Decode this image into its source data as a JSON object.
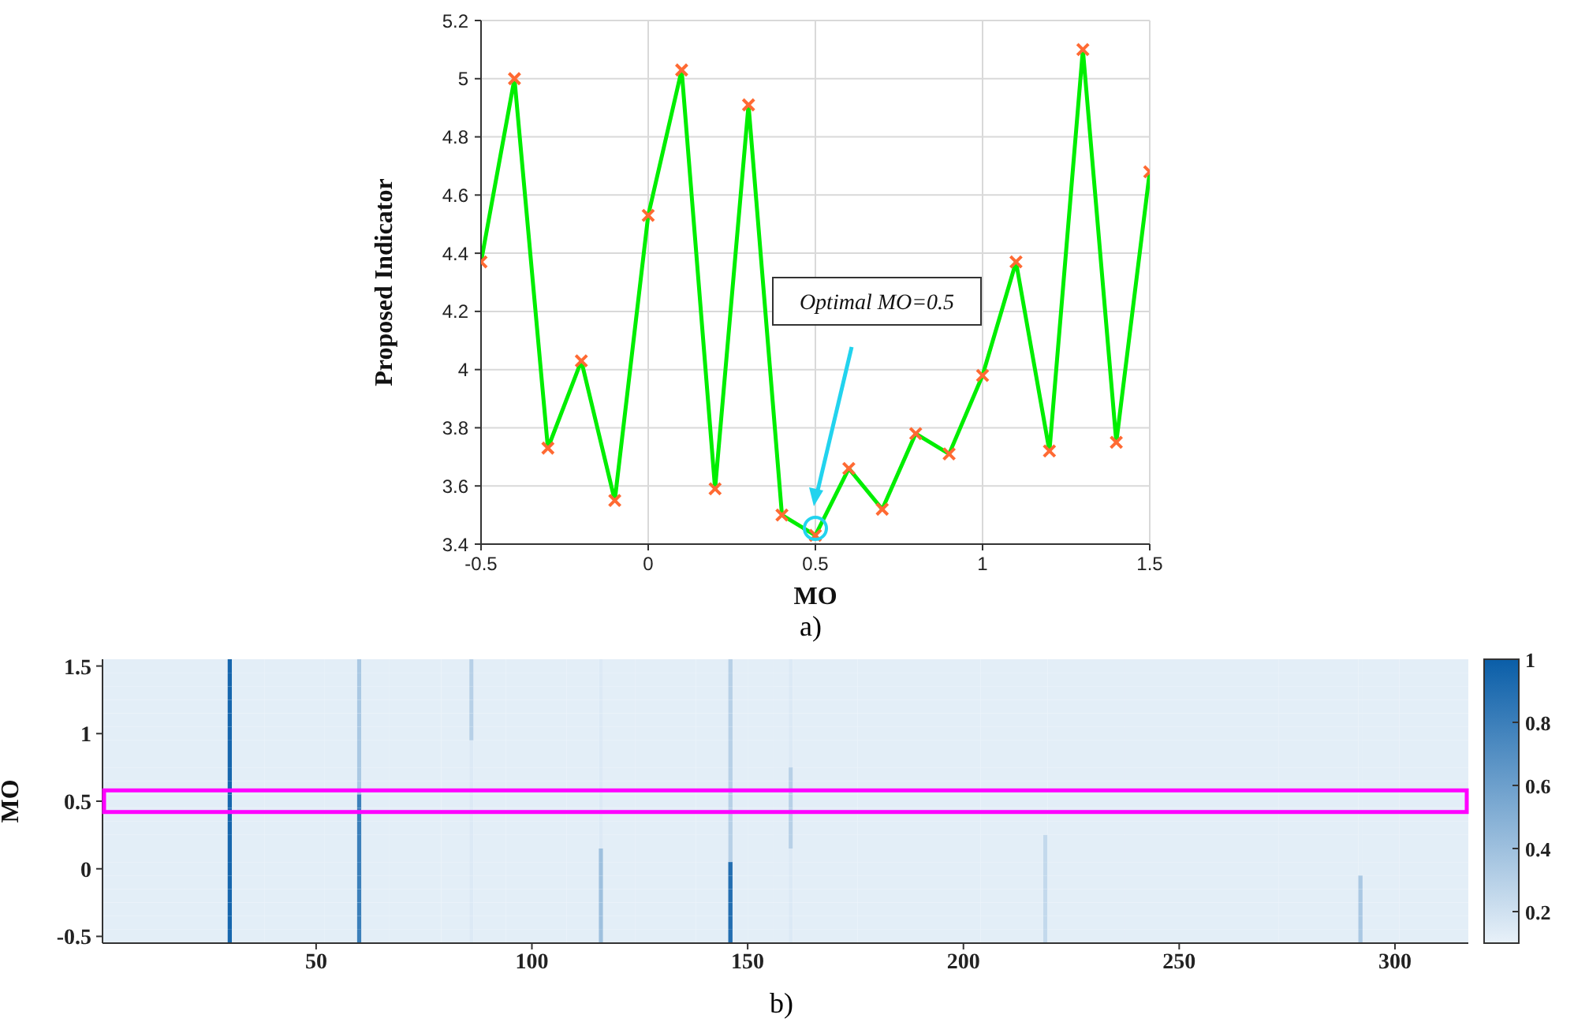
{
  "chart_data": [
    {
      "type": "line",
      "xlabel": "MO",
      "ylabel": "Proposed Indicator",
      "x": [
        -0.5,
        -0.4,
        -0.3,
        -0.2,
        -0.1,
        0,
        0.1,
        0.2,
        0.3,
        0.4,
        0.5,
        0.6,
        0.7,
        0.8,
        0.9,
        1.0,
        1.1,
        1.2,
        1.3,
        1.4,
        1.5
      ],
      "series": [
        {
          "color": "#00ee00",
          "colors": [
            "#ff6a33",
            "#ff6a33",
            "#ff6a33",
            "#ff6a33",
            "#ff6a33",
            "#ff6a33",
            "#ff6a33",
            "#ff6a33",
            "#ff6a33",
            "#ff6a33",
            "#ff6a33",
            "#ff6a33",
            "#ff6a33",
            "#ff6a33",
            "#ff6a33",
            "#ff6a33",
            "#ff6a33",
            "#ff6a33",
            "#ff6a33",
            "#ff6a33",
            "#ff6a33"
          ],
          "values": [
            4.37,
            5.0,
            3.73,
            4.03,
            3.55,
            4.53,
            5.03,
            3.59,
            4.91,
            3.5,
            3.43,
            3.66,
            3.52,
            3.78,
            3.71,
            3.98,
            4.37,
            3.72,
            5.1,
            3.75,
            4.68
          ]
        }
      ],
      "xlim": [
        -0.5,
        1.5
      ],
      "xticks": [
        -0.5,
        0,
        0.5,
        1,
        1.5
      ],
      "ylim": [
        3.4,
        5.2
      ],
      "yticks": [
        3.4,
        3.6,
        3.8,
        4,
        4.2,
        4.4,
        4.6,
        4.8,
        5,
        5.2
      ],
      "grid": true,
      "marker": "cross",
      "annotations": [
        "Optimal MO=0.5",
        "a)"
      ]
    },
    {
      "type": "heatmap",
      "ylabel": "MO",
      "clim": [
        0.1,
        1
      ],
      "cticks": [
        0.2,
        0.4,
        0.6,
        0.8,
        1
      ],
      "x": [
        10,
        29,
        30,
        31,
        45,
        59,
        60,
        61,
        73,
        85,
        86,
        87,
        101,
        115,
        116,
        117,
        131,
        145,
        146,
        147,
        153,
        159,
        160,
        161,
        190,
        218,
        219,
        220,
        255,
        291,
        292,
        293,
        309
      ],
      "xlim": [
        0.5,
        317
      ],
      "xticks": [
        50,
        100,
        150,
        200,
        250,
        300
      ],
      "y_categories": [
        "1.5",
        null,
        null,
        null,
        null,
        "1",
        null,
        null,
        null,
        null,
        "0.5",
        null,
        null,
        null,
        null,
        "0",
        null,
        null,
        null,
        null,
        "-0.5"
      ],
      "cells": [
        [
          0.12,
          0.12,
          0.95,
          0.12,
          0.12,
          0.12,
          0.35,
          0.12,
          0.12,
          0.12,
          0.3,
          0.12,
          0.12,
          0.12,
          0.15,
          0.12,
          0.12,
          0.12,
          0.3,
          0.12,
          0.12,
          0.12,
          0.15,
          0.12,
          0.12,
          0.12,
          0.12,
          0.12,
          0.12,
          0.12,
          0.12,
          0.12,
          0.12
        ],
        [
          0.12,
          0.12,
          0.95,
          0.12,
          0.12,
          0.12,
          0.35,
          0.12,
          0.12,
          0.12,
          0.3,
          0.12,
          0.12,
          0.12,
          0.15,
          0.12,
          0.12,
          0.12,
          0.3,
          0.12,
          0.12,
          0.12,
          0.15,
          0.12,
          0.12,
          0.12,
          0.12,
          0.12,
          0.12,
          0.12,
          0.12,
          0.12,
          0.12
        ],
        [
          0.12,
          0.12,
          0.95,
          0.12,
          0.12,
          0.12,
          0.35,
          0.12,
          0.12,
          0.12,
          0.3,
          0.12,
          0.12,
          0.12,
          0.15,
          0.12,
          0.12,
          0.12,
          0.3,
          0.12,
          0.12,
          0.12,
          0.15,
          0.12,
          0.12,
          0.12,
          0.12,
          0.12,
          0.12,
          0.12,
          0.12,
          0.12,
          0.12
        ],
        [
          0.12,
          0.12,
          0.95,
          0.12,
          0.12,
          0.12,
          0.35,
          0.12,
          0.12,
          0.12,
          0.3,
          0.12,
          0.12,
          0.12,
          0.15,
          0.12,
          0.12,
          0.12,
          0.3,
          0.12,
          0.12,
          0.12,
          0.15,
          0.12,
          0.12,
          0.12,
          0.12,
          0.12,
          0.12,
          0.12,
          0.12,
          0.12,
          0.12
        ],
        [
          0.12,
          0.12,
          0.95,
          0.12,
          0.12,
          0.12,
          0.35,
          0.12,
          0.12,
          0.12,
          0.3,
          0.12,
          0.12,
          0.12,
          0.15,
          0.12,
          0.12,
          0.12,
          0.3,
          0.12,
          0.12,
          0.12,
          0.15,
          0.12,
          0.12,
          0.12,
          0.12,
          0.12,
          0.12,
          0.12,
          0.12,
          0.12,
          0.12
        ],
        [
          0.12,
          0.12,
          0.95,
          0.12,
          0.12,
          0.12,
          0.35,
          0.12,
          0.12,
          0.12,
          0.3,
          0.12,
          0.12,
          0.12,
          0.15,
          0.12,
          0.12,
          0.12,
          0.3,
          0.12,
          0.12,
          0.12,
          0.15,
          0.12,
          0.12,
          0.12,
          0.12,
          0.12,
          0.12,
          0.12,
          0.12,
          0.12,
          0.12
        ],
        [
          0.12,
          0.12,
          0.95,
          0.12,
          0.12,
          0.12,
          0.35,
          0.12,
          0.12,
          0.12,
          0.15,
          0.12,
          0.12,
          0.12,
          0.15,
          0.12,
          0.12,
          0.12,
          0.3,
          0.12,
          0.12,
          0.12,
          0.15,
          0.12,
          0.12,
          0.12,
          0.12,
          0.12,
          0.12,
          0.12,
          0.12,
          0.12,
          0.12
        ],
        [
          0.12,
          0.12,
          0.95,
          0.12,
          0.12,
          0.12,
          0.35,
          0.12,
          0.12,
          0.12,
          0.15,
          0.12,
          0.12,
          0.12,
          0.15,
          0.12,
          0.12,
          0.12,
          0.3,
          0.12,
          0.12,
          0.12,
          0.15,
          0.12,
          0.12,
          0.12,
          0.12,
          0.12,
          0.12,
          0.12,
          0.12,
          0.12,
          0.12
        ],
        [
          0.12,
          0.12,
          0.95,
          0.12,
          0.12,
          0.12,
          0.35,
          0.12,
          0.12,
          0.12,
          0.15,
          0.12,
          0.12,
          0.12,
          0.15,
          0.12,
          0.12,
          0.12,
          0.3,
          0.12,
          0.12,
          0.12,
          0.3,
          0.12,
          0.12,
          0.12,
          0.12,
          0.12,
          0.12,
          0.12,
          0.12,
          0.12,
          0.12
        ],
        [
          0.12,
          0.12,
          0.95,
          0.12,
          0.12,
          0.12,
          0.35,
          0.12,
          0.12,
          0.12,
          0.15,
          0.12,
          0.12,
          0.12,
          0.15,
          0.12,
          0.12,
          0.12,
          0.3,
          0.12,
          0.12,
          0.12,
          0.3,
          0.12,
          0.12,
          0.12,
          0.12,
          0.12,
          0.12,
          0.12,
          0.12,
          0.12,
          0.12
        ],
        [
          0.12,
          0.12,
          0.95,
          0.12,
          0.12,
          0.12,
          0.8,
          0.12,
          0.12,
          0.12,
          0.15,
          0.12,
          0.12,
          0.12,
          0.15,
          0.12,
          0.12,
          0.12,
          0.3,
          0.12,
          0.12,
          0.12,
          0.3,
          0.12,
          0.12,
          0.12,
          0.12,
          0.12,
          0.12,
          0.12,
          0.12,
          0.12,
          0.12
        ],
        [
          0.12,
          0.12,
          0.95,
          0.12,
          0.12,
          0.12,
          0.8,
          0.12,
          0.12,
          0.12,
          0.15,
          0.12,
          0.12,
          0.12,
          0.15,
          0.12,
          0.12,
          0.12,
          0.3,
          0.12,
          0.12,
          0.12,
          0.3,
          0.12,
          0.12,
          0.12,
          0.12,
          0.12,
          0.12,
          0.12,
          0.12,
          0.12,
          0.12
        ],
        [
          0.12,
          0.12,
          0.95,
          0.12,
          0.12,
          0.12,
          0.8,
          0.12,
          0.12,
          0.12,
          0.15,
          0.12,
          0.12,
          0.12,
          0.15,
          0.12,
          0.12,
          0.12,
          0.3,
          0.12,
          0.12,
          0.12,
          0.3,
          0.12,
          0.12,
          0.12,
          0.12,
          0.12,
          0.12,
          0.12,
          0.12,
          0.12,
          0.12
        ],
        [
          0.12,
          0.12,
          0.95,
          0.12,
          0.12,
          0.12,
          0.8,
          0.12,
          0.12,
          0.12,
          0.15,
          0.12,
          0.12,
          0.12,
          0.15,
          0.12,
          0.12,
          0.12,
          0.3,
          0.12,
          0.12,
          0.12,
          0.3,
          0.12,
          0.12,
          0.12,
          0.25,
          0.12,
          0.12,
          0.12,
          0.12,
          0.12,
          0.12
        ],
        [
          0.12,
          0.12,
          0.95,
          0.12,
          0.12,
          0.12,
          0.8,
          0.12,
          0.12,
          0.12,
          0.15,
          0.12,
          0.12,
          0.12,
          0.4,
          0.12,
          0.12,
          0.12,
          0.3,
          0.12,
          0.12,
          0.12,
          0.15,
          0.12,
          0.12,
          0.12,
          0.25,
          0.12,
          0.12,
          0.12,
          0.12,
          0.12,
          0.12
        ],
        [
          0.12,
          0.12,
          0.95,
          0.12,
          0.12,
          0.12,
          0.8,
          0.12,
          0.12,
          0.12,
          0.15,
          0.12,
          0.12,
          0.12,
          0.4,
          0.12,
          0.12,
          0.12,
          0.9,
          0.12,
          0.12,
          0.12,
          0.15,
          0.12,
          0.12,
          0.12,
          0.25,
          0.12,
          0.12,
          0.12,
          0.12,
          0.12,
          0.12
        ],
        [
          0.12,
          0.12,
          0.95,
          0.12,
          0.12,
          0.12,
          0.8,
          0.12,
          0.12,
          0.12,
          0.15,
          0.12,
          0.12,
          0.12,
          0.4,
          0.12,
          0.12,
          0.12,
          0.9,
          0.12,
          0.12,
          0.12,
          0.15,
          0.12,
          0.12,
          0.12,
          0.25,
          0.12,
          0.12,
          0.12,
          0.35,
          0.12,
          0.12
        ],
        [
          0.12,
          0.12,
          0.95,
          0.12,
          0.12,
          0.12,
          0.8,
          0.12,
          0.12,
          0.12,
          0.15,
          0.12,
          0.12,
          0.12,
          0.4,
          0.12,
          0.12,
          0.12,
          0.9,
          0.12,
          0.12,
          0.12,
          0.15,
          0.12,
          0.12,
          0.12,
          0.25,
          0.12,
          0.12,
          0.12,
          0.35,
          0.12,
          0.12
        ],
        [
          0.12,
          0.12,
          0.95,
          0.12,
          0.12,
          0.12,
          0.8,
          0.12,
          0.12,
          0.12,
          0.15,
          0.12,
          0.12,
          0.12,
          0.4,
          0.12,
          0.12,
          0.12,
          0.9,
          0.12,
          0.12,
          0.12,
          0.15,
          0.12,
          0.12,
          0.12,
          0.25,
          0.12,
          0.12,
          0.12,
          0.35,
          0.12,
          0.12
        ],
        [
          0.12,
          0.12,
          0.95,
          0.12,
          0.12,
          0.12,
          0.8,
          0.12,
          0.12,
          0.12,
          0.15,
          0.12,
          0.12,
          0.12,
          0.4,
          0.12,
          0.12,
          0.12,
          0.9,
          0.12,
          0.12,
          0.12,
          0.15,
          0.12,
          0.12,
          0.12,
          0.25,
          0.12,
          0.12,
          0.12,
          0.35,
          0.12,
          0.12
        ],
        [
          0.12,
          0.12,
          0.95,
          0.12,
          0.12,
          0.12,
          0.8,
          0.12,
          0.12,
          0.12,
          0.15,
          0.12,
          0.12,
          0.12,
          0.4,
          0.12,
          0.12,
          0.12,
          0.9,
          0.12,
          0.12,
          0.12,
          0.15,
          0.12,
          0.12,
          0.12,
          0.25,
          0.12,
          0.12,
          0.12,
          0.35,
          0.12,
          0.12
        ]
      ],
      "annotations": [
        "b)"
      ]
    }
  ]
}
